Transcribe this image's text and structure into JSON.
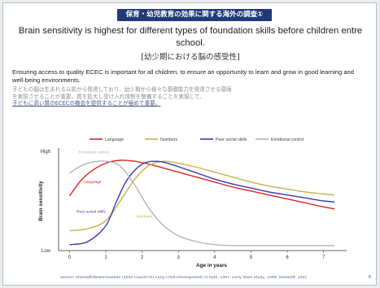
{
  "banner": "保育・幼児教育の効果に関する海外の調査①",
  "title": "Brain sensitivity is highest for different types of foundation skills before children entre school.",
  "subtitle_jp": "[幼少期における脳の感受性]",
  "lead_text": "Ensuring access to quality ECEC is important for all children, to ensure an opportunity to learn and grow in good learning and well-being environments.",
  "jp_lines": [
    "子どもの脳は生まれる以前から発達しており、幼少期から様々な基礎能力を発達させる環境",
    "を実現させることが重要。質を拡大し受け入れ体制を整備することを実現して、",
    "子どもに高い質のECECの機会を提供することが極めて重要。"
  ],
  "source": "Source: Shonkoff/Nelson/Gordon (2000 Council for Early Child Development) in Ruth, 1997; Early Years Study, 1999; Shonkoff, 2001",
  "page_number": "6",
  "colors": {
    "banner": "#1f3a78",
    "language": "#e02424",
    "numbers": "#c7b24a",
    "peer_social": "#3a3ab8",
    "emotional_control": "#b5b5b5",
    "source": "#4a5b86"
  },
  "chart_data": {
    "type": "line",
    "xlabel": "Age in years",
    "ylabel": "Brain sensitivity",
    "y_ticks": [
      "Low",
      "High"
    ],
    "x_ticks": [
      "0",
      "1",
      "2",
      "3",
      "4",
      "5",
      "6",
      "7"
    ],
    "xlim": [
      -0.3,
      7.5
    ],
    "ylim": [
      0,
      1
    ],
    "grid": false,
    "legend_position": "top",
    "annotations": [
      {
        "text": "Emotional control",
        "x": 0.25,
        "y": 0.98
      },
      {
        "text": "Language",
        "x": 0.4,
        "y": 0.68
      },
      {
        "text": "Peer social skills",
        "x": 0.2,
        "y": 0.38
      },
      {
        "text": "Numbers",
        "x": 1.85,
        "y": 0.33
      }
    ],
    "series": [
      {
        "name": "Language",
        "color": "#e02424",
        "x": [
          0,
          0.3,
          0.6,
          1,
          1.4,
          1.8,
          2.2,
          2.6,
          3,
          3.5,
          4,
          4.5,
          5,
          5.5,
          6,
          6.5,
          7,
          7.3
        ],
        "y": [
          0.55,
          0.7,
          0.8,
          0.88,
          0.91,
          0.9,
          0.87,
          0.83,
          0.79,
          0.74,
          0.69,
          0.64,
          0.6,
          0.56,
          0.52,
          0.48,
          0.44,
          0.42
        ]
      },
      {
        "name": "Numbers",
        "color": "#c7b24a",
        "x": [
          0,
          0.5,
          1,
          1.4,
          1.8,
          2.2,
          2.6,
          3,
          3.5,
          4,
          4.5,
          5,
          5.5,
          6,
          6.5,
          7,
          7.3
        ],
        "y": [
          0.2,
          0.22,
          0.3,
          0.5,
          0.72,
          0.86,
          0.9,
          0.88,
          0.84,
          0.79,
          0.74,
          0.69,
          0.65,
          0.62,
          0.59,
          0.57,
          0.56
        ]
      },
      {
        "name": "Peer social skills",
        "color": "#3a3ab8",
        "x": [
          0,
          0.5,
          1,
          1.3,
          1.6,
          2,
          2.4,
          2.8,
          3.2,
          3.6,
          4,
          4.5,
          5,
          5.5,
          6,
          6.5,
          7,
          7.3
        ],
        "y": [
          0.06,
          0.09,
          0.25,
          0.5,
          0.72,
          0.87,
          0.9,
          0.87,
          0.82,
          0.77,
          0.72,
          0.67,
          0.63,
          0.59,
          0.56,
          0.53,
          0.5,
          0.49
        ]
      },
      {
        "name": "Emotional control",
        "color": "#b5b5b5",
        "x": [
          0,
          0.3,
          0.6,
          1,
          1.4,
          1.8,
          2.2,
          2.6,
          3,
          3.5,
          4,
          4.5,
          5,
          5.5,
          6,
          6.5,
          7,
          7.3
        ],
        "y": [
          0.78,
          0.85,
          0.89,
          0.9,
          0.85,
          0.66,
          0.42,
          0.25,
          0.15,
          0.09,
          0.06,
          0.05,
          0.05,
          0.05,
          0.05,
          0.05,
          0.05,
          0.05
        ]
      }
    ]
  }
}
